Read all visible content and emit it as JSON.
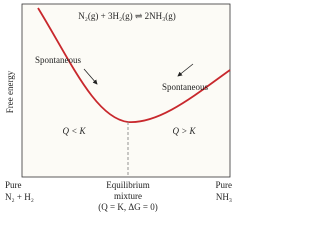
{
  "diagram": {
    "equation": "N₂(g) + 3H₂(g) ⇌ 2NH₃(g)",
    "y_axis_label": "Free energy",
    "annotations": [
      "Spontaneous",
      "Spontaneous"
    ],
    "regions": [
      "Q < K",
      "Q > K"
    ],
    "x_labels": {
      "left": [
        "Pure",
        "N₂ + H₂"
      ],
      "center": [
        "Equilibrium",
        "mixture",
        "(Q = K, ΔG = 0)"
      ],
      "right": [
        "Pure",
        "NH₃"
      ]
    }
  }
}
